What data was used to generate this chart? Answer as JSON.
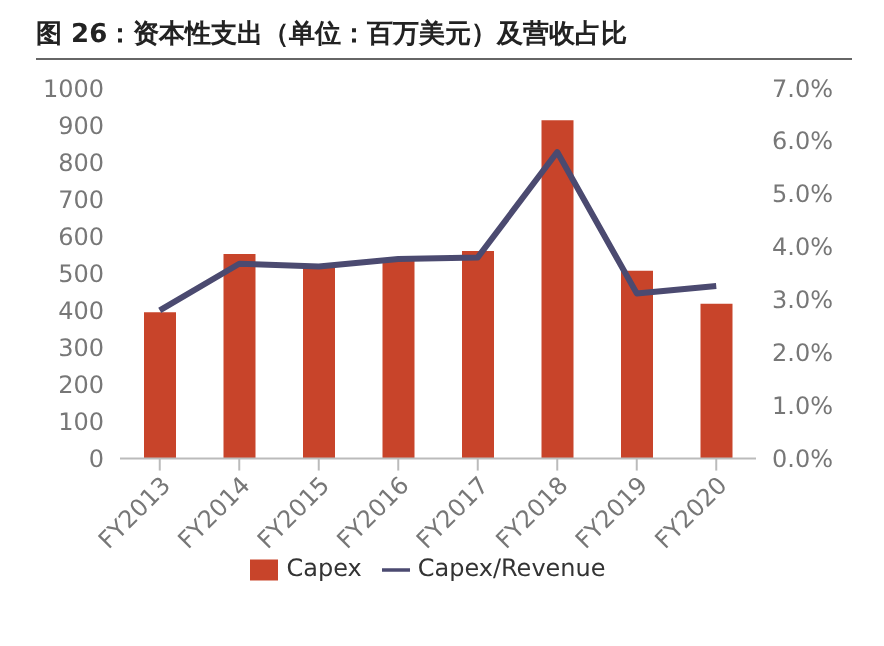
{
  "chart_data": {
    "type": "bar",
    "title": "图 26：资本性支出（单位：百万美元）及营收占比",
    "categories": [
      "FY2013",
      "FY2014",
      "FY2015",
      "FY2016",
      "FY2017",
      "FY2018",
      "FY2019",
      "FY2020"
    ],
    "series": [
      {
        "name": "Capex",
        "color": "#c8442a",
        "values": [
          395,
          552,
          517,
          540,
          560,
          913,
          507,
          418
        ]
      },
      {
        "name": "Capex/Revenue",
        "type": "line",
        "axis": "y2",
        "color": "#4b4a70",
        "values": [
          0.028,
          0.0368,
          0.0363,
          0.0377,
          0.038,
          0.0579,
          0.0312,
          0.0326
        ]
      }
    ],
    "ylim": [
      0,
      1000
    ],
    "yticks": [
      0,
      100,
      200,
      300,
      400,
      500,
      600,
      700,
      800,
      900,
      1000
    ],
    "y2lim": [
      0,
      0.07
    ],
    "y2ticks": [
      {
        "value": 0,
        "label": "0.0%"
      },
      {
        "value": 0.01,
        "label": "1.0%"
      },
      {
        "value": 0.02,
        "label": "2.0%"
      },
      {
        "value": 0.03,
        "label": "3.0%"
      },
      {
        "value": 0.04,
        "label": "4.0%"
      },
      {
        "value": 0.05,
        "label": "5.0%"
      },
      {
        "value": 0.06,
        "label": "6.0%"
      },
      {
        "value": 0.07,
        "label": "7.0%"
      }
    ],
    "grid": false,
    "legend": "bottom",
    "marker": "none",
    "line_style": "solid"
  }
}
